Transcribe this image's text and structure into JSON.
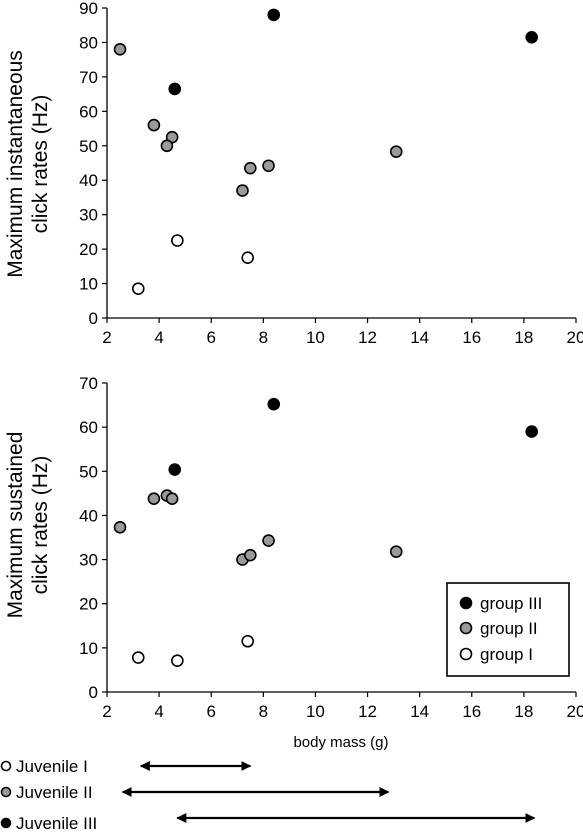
{
  "colors": {
    "group III": "#000000",
    "group II": "#9a9a9a",
    "group I": "#ffffff"
  },
  "chart_data": [
    {
      "type": "scatter",
      "title": "",
      "xlabel": "",
      "ylabel_lines": [
        "Maximum instantaneous",
        "click rates (Hz)"
      ],
      "xlim": [
        2,
        20
      ],
      "ylim": [
        0,
        90
      ],
      "xticks": [
        2,
        4,
        6,
        8,
        10,
        12,
        14,
        16,
        18,
        20
      ],
      "yticks": [
        0,
        10,
        20,
        30,
        40,
        50,
        60,
        70,
        80,
        90
      ],
      "grid": false,
      "series": [
        {
          "name": "group III",
          "points": [
            [
              8.4,
              88
            ],
            [
              18.3,
              81.5
            ],
            [
              4.6,
              66.5
            ]
          ]
        },
        {
          "name": "group II",
          "points": [
            [
              2.5,
              78
            ],
            [
              3.8,
              56
            ],
            [
              4.5,
              52.5
            ],
            [
              4.3,
              50
            ],
            [
              13.1,
              48.3
            ],
            [
              7.5,
              43.5
            ],
            [
              8.2,
              44.2
            ],
            [
              7.2,
              37
            ]
          ]
        },
        {
          "name": "group I",
          "points": [
            [
              4.7,
              22.5
            ],
            [
              7.4,
              17.5
            ],
            [
              3.2,
              8.5
            ]
          ]
        }
      ]
    },
    {
      "type": "scatter",
      "title": "",
      "xlabel": "body mass (g)",
      "ylabel_lines": [
        "Maximum sustained",
        "click rates (Hz)"
      ],
      "xlim": [
        2,
        20
      ],
      "ylim": [
        0,
        70
      ],
      "xticks": [
        2,
        4,
        6,
        8,
        10,
        12,
        14,
        16,
        18,
        20
      ],
      "yticks": [
        0,
        10,
        20,
        30,
        40,
        50,
        60,
        70
      ],
      "grid": false,
      "legend_position": "bottom-right",
      "legend": [
        "group III",
        "group II",
        "group I"
      ],
      "series": [
        {
          "name": "group III",
          "points": [
            [
              8.4,
              65.2
            ],
            [
              18.3,
              59
            ],
            [
              4.6,
              50.4
            ]
          ]
        },
        {
          "name": "group II",
          "points": [
            [
              2.5,
              37.3
            ],
            [
              3.8,
              43.8
            ],
            [
              4.3,
              44.5
            ],
            [
              4.5,
              43.8
            ],
            [
              7.2,
              30
            ],
            [
              7.5,
              31
            ],
            [
              8.2,
              34.3
            ],
            [
              13.1,
              31.8
            ]
          ]
        },
        {
          "name": "group I",
          "points": [
            [
              7.4,
              11.5
            ],
            [
              3.2,
              7.8
            ],
            [
              4.7,
              7.1
            ]
          ]
        }
      ]
    }
  ],
  "juveniles": [
    {
      "label": "Juvenile I",
      "group": "group I",
      "range": [
        3.3,
        7.5
      ]
    },
    {
      "label": "Juvenile II",
      "group": "group II",
      "range": [
        2.6,
        12.8
      ]
    },
    {
      "label": "Juvenile III",
      "group": "group III",
      "range": [
        4.7,
        18.4
      ]
    }
  ]
}
